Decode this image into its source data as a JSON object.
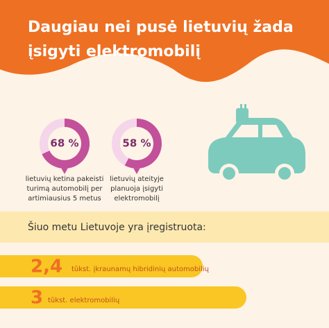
{
  "title": [
    "Daugiau nei pusė lietuvių žada",
    "įsigyti elektromobilį"
  ],
  "donuts": [
    {
      "value": 68,
      "value_label": "68 %",
      "lines": [
        "lietuvių ketina pakeisti",
        "turimą automobilį per",
        "artimiausius 5 metus"
      ]
    },
    {
      "value": 58,
      "value_label": "58 %",
      "lines": [
        "lietuvių ateityje",
        "planuoja įsigyti",
        "elektromobilį"
      ]
    }
  ],
  "subheading": "Šiuo metu Lietuvoje yra įregistruota:",
  "bars": [
    {
      "value": 2.4,
      "value_label": "2,4",
      "text": "tūkst. įkraunamų hibridinių automobilių"
    },
    {
      "value": 3,
      "value_label": "3",
      "text": "tūkst. elektromobilių"
    }
  ]
}
